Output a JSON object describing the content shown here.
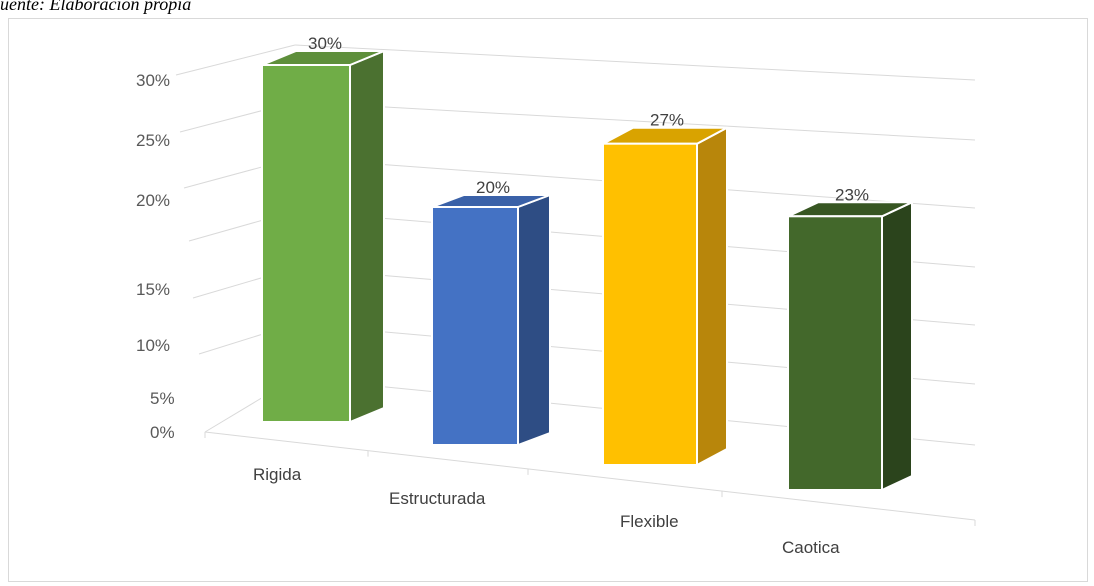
{
  "caption": "uente: Elaboración propia",
  "chart_data": {
    "type": "bar",
    "style": "3d-column",
    "categories": [
      "Rigida",
      "Estructurada",
      "Flexible",
      "Caotica"
    ],
    "values": [
      30,
      20,
      27,
      23
    ],
    "data_labels": [
      "30%",
      "20%",
      "27%",
      "23%"
    ],
    "y_ticks": [
      "0%",
      "5%",
      "10%",
      "15%",
      "20%",
      "25%",
      "30%"
    ],
    "ylim": [
      0,
      30
    ],
    "grid": true,
    "colors": {
      "Rigida": "#70ad47",
      "Estructurada": "#4472c4",
      "Flexible": "#ffc000",
      "Caotica": "#43682b"
    },
    "side_colors": {
      "Rigida": "#4b7130",
      "Estructurada": "#2e4d84",
      "Flexible": "#b8860b",
      "Caotica": "#2b441c"
    },
    "top_colors": {
      "Rigida": "#5e8f3b",
      "Estructurada": "#3a61a8",
      "Flexible": "#d9a300",
      "Caotica": "#375622"
    },
    "title": "",
    "xlabel": "",
    "ylabel": ""
  }
}
